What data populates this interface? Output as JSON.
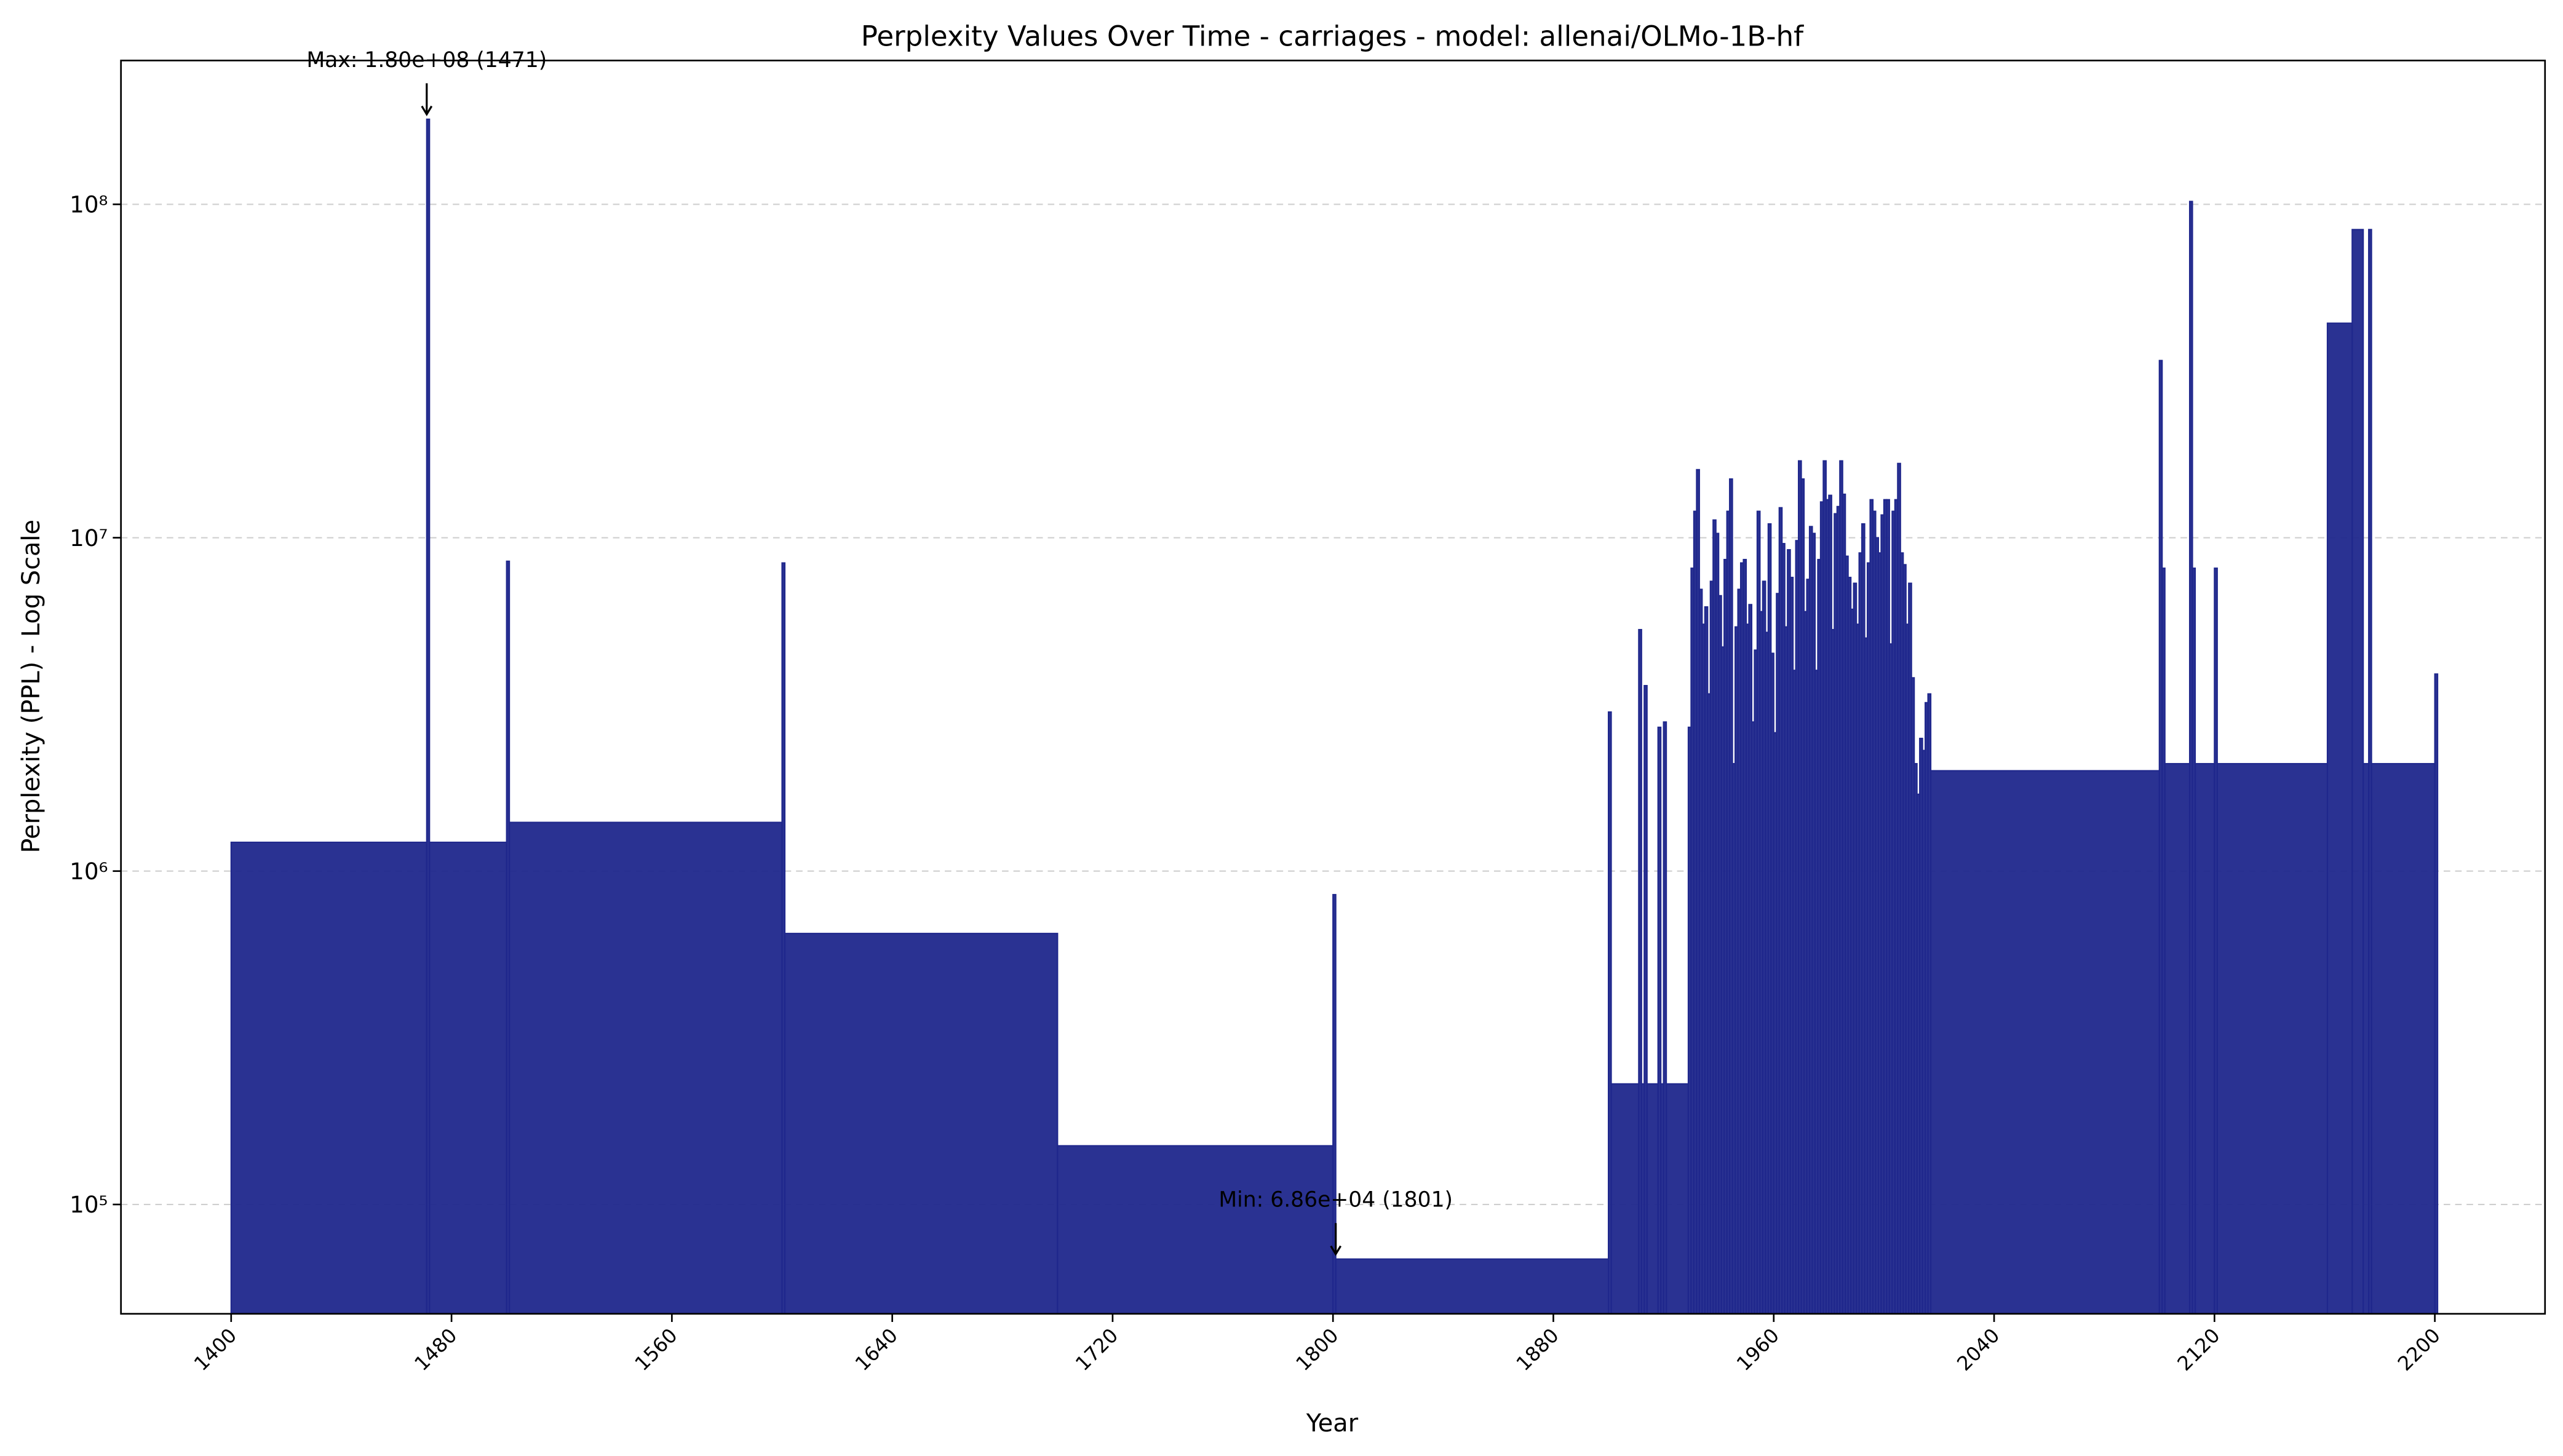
{
  "chart_data": {
    "type": "histogram",
    "title": "Perplexity Values Over Time - carriages - model: allenai/OLMo-1B-hf",
    "x_label": "Year",
    "y_label": "Perplexity (PPL) - Log Scale",
    "yscale": "log",
    "grid": true,
    "color": "#1f278c",
    "xlim": [
      1360,
      2240
    ],
    "ylim": [
      47000,
      270000000
    ],
    "xticks": [
      1400,
      1480,
      1560,
      1640,
      1720,
      1800,
      1880,
      1960,
      2040,
      2120,
      2200
    ],
    "yticks": [
      {
        "value": 100000,
        "label": "10⁵"
      },
      {
        "value": 1000000,
        "label": "10⁶"
      },
      {
        "value": 10000000,
        "label": "10⁷"
      },
      {
        "value": 100000000,
        "label": "10⁸"
      }
    ],
    "bins": [
      1400,
      1471,
      1472,
      1500,
      1501,
      1600,
      1601,
      1700,
      1800,
      1801,
      1900,
      1901,
      1911,
      1912,
      1913,
      1914,
      1918,
      1919,
      1920,
      1921,
      1929,
      1930,
      1931,
      1932,
      1933,
      1934,
      1935,
      1936,
      1937,
      1938,
      1939,
      1940,
      1941,
      1942,
      1943,
      1944,
      1945,
      1946,
      1947,
      1948,
      1949,
      1950,
      1951,
      1952,
      1953,
      1954,
      1955,
      1956,
      1957,
      1958,
      1959,
      1960,
      1961,
      1962,
      1963,
      1964,
      1965,
      1966,
      1967,
      1968,
      1969,
      1970,
      1971,
      1972,
      1973,
      1974,
      1975,
      1976,
      1977,
      1978,
      1979,
      1980,
      1981,
      1982,
      1983,
      1984,
      1985,
      1986,
      1987,
      1988,
      1989,
      1990,
      1991,
      1992,
      1993,
      1994,
      1995,
      1996,
      1997,
      1998,
      1999,
      2000,
      2001,
      2002,
      2003,
      2004,
      2005,
      2006,
      2007,
      2008,
      2009,
      2010,
      2011,
      2012,
      2013,
      2014,
      2015,
      2016,
      2017,
      2100,
      2101,
      2102,
      2111,
      2112,
      2113,
      2120,
      2121,
      2161,
      2170,
      2174,
      2176,
      2177,
      2200,
      2201
    ],
    "values": [
      1220000,
      180000000,
      1220000,
      8500000,
      1400000,
      8400000,
      650000,
      150000,
      850000,
      68600,
      3000000,
      230000,
      5300000,
      230000,
      3600000,
      230000,
      2700000,
      230000,
      2800000,
      230000,
      2700000,
      8100000,
      12000000,
      16000000,
      7000000,
      5500000,
      6200000,
      3400000,
      7400000,
      11300000,
      10300000,
      6700000,
      4700000,
      8600000,
      12000000,
      15000000,
      2100000,
      5400000,
      7000000,
      8400000,
      8600000,
      5500000,
      6300000,
      2800000,
      4600000,
      12000000,
      6000000,
      7400000,
      5200000,
      11000000,
      4500000,
      2600000,
      6800000,
      12300000,
      9600000,
      5400000,
      9200000,
      7600000,
      4000000,
      9800000,
      17000000,
      15000000,
      6000000,
      7500000,
      10800000,
      10300000,
      4000000,
      8600000,
      12800000,
      17000000,
      13000000,
      13400000,
      5300000,
      11800000,
      12400000,
      17000000,
      13500000,
      8800000,
      7600000,
      6100000,
      7300000,
      5500000,
      9000000,
      11000000,
      5000000,
      8400000,
      13000000,
      12000000,
      10000000,
      9000000,
      11700000,
      13000000,
      13000000,
      4800000,
      12000000,
      13000000,
      16700000,
      9000000,
      8300000,
      5500000,
      7300000,
      3800000,
      2100000,
      1700000,
      2500000,
      2300000,
      3200000,
      3400000,
      2000000,
      34000000,
      8100000,
      2100000,
      102000000,
      8100000,
      2100000,
      8100000,
      2100000,
      44000000,
      84000000,
      2100000,
      84000000,
      2100000,
      3900000
    ],
    "annotations": [
      {
        "text": "Max: 1.80e+08 (1471)",
        "x": 1471,
        "y": 180000000
      },
      {
        "text": "Min: 6.86e+04 (1801)",
        "x": 1801,
        "y": 68600
      }
    ]
  }
}
